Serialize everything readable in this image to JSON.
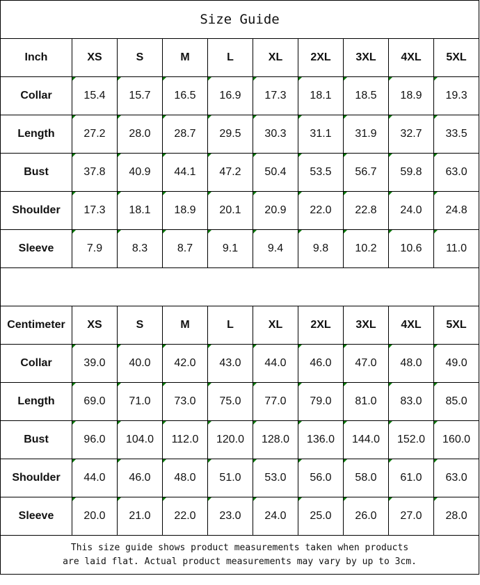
{
  "title": "Size Guide",
  "sizes": [
    "XS",
    "S",
    "M",
    "L",
    "XL",
    "2XL",
    "3XL",
    "4XL",
    "5XL"
  ],
  "inch": {
    "unit": "Inch",
    "rows": [
      {
        "label": "Collar",
        "values": [
          "15.4",
          "15.7",
          "16.5",
          "16.9",
          "17.3",
          "18.1",
          "18.5",
          "18.9",
          "19.3"
        ]
      },
      {
        "label": "Length",
        "values": [
          "27.2",
          "28.0",
          "28.7",
          "29.5",
          "30.3",
          "31.1",
          "31.9",
          "32.7",
          "33.5"
        ]
      },
      {
        "label": "Bust",
        "values": [
          "37.8",
          "40.9",
          "44.1",
          "47.2",
          "50.4",
          "53.5",
          "56.7",
          "59.8",
          "63.0"
        ]
      },
      {
        "label": "Shoulder",
        "values": [
          "17.3",
          "18.1",
          "18.9",
          "20.1",
          "20.9",
          "22.0",
          "22.8",
          "24.0",
          "24.8"
        ]
      },
      {
        "label": "Sleeve",
        "values": [
          "7.9",
          "8.3",
          "8.7",
          "9.1",
          "9.4",
          "9.8",
          "10.2",
          "10.6",
          "11.0"
        ]
      }
    ]
  },
  "cm": {
    "unit": "Centimeter",
    "rows": [
      {
        "label": "Collar",
        "values": [
          "39.0",
          "40.0",
          "42.0",
          "43.0",
          "44.0",
          "46.0",
          "47.0",
          "48.0",
          "49.0"
        ]
      },
      {
        "label": "Length",
        "values": [
          "69.0",
          "71.0",
          "73.0",
          "75.0",
          "77.0",
          "79.0",
          "81.0",
          "83.0",
          "85.0"
        ]
      },
      {
        "label": "Bust",
        "values": [
          "96.0",
          "104.0",
          "112.0",
          "120.0",
          "128.0",
          "136.0",
          "144.0",
          "152.0",
          "160.0"
        ]
      },
      {
        "label": "Shoulder",
        "values": [
          "44.0",
          "46.0",
          "48.0",
          "51.0",
          "53.0",
          "56.0",
          "58.0",
          "61.0",
          "63.0"
        ]
      },
      {
        "label": "Sleeve",
        "values": [
          "20.0",
          "21.0",
          "22.0",
          "23.0",
          "24.0",
          "25.0",
          "26.0",
          "27.0",
          "28.0"
        ]
      }
    ]
  },
  "footer": {
    "line1": "This size guide shows product measurements taken when products",
    "line2": "are laid flat. Actual product measurements may vary by up to 3cm."
  }
}
